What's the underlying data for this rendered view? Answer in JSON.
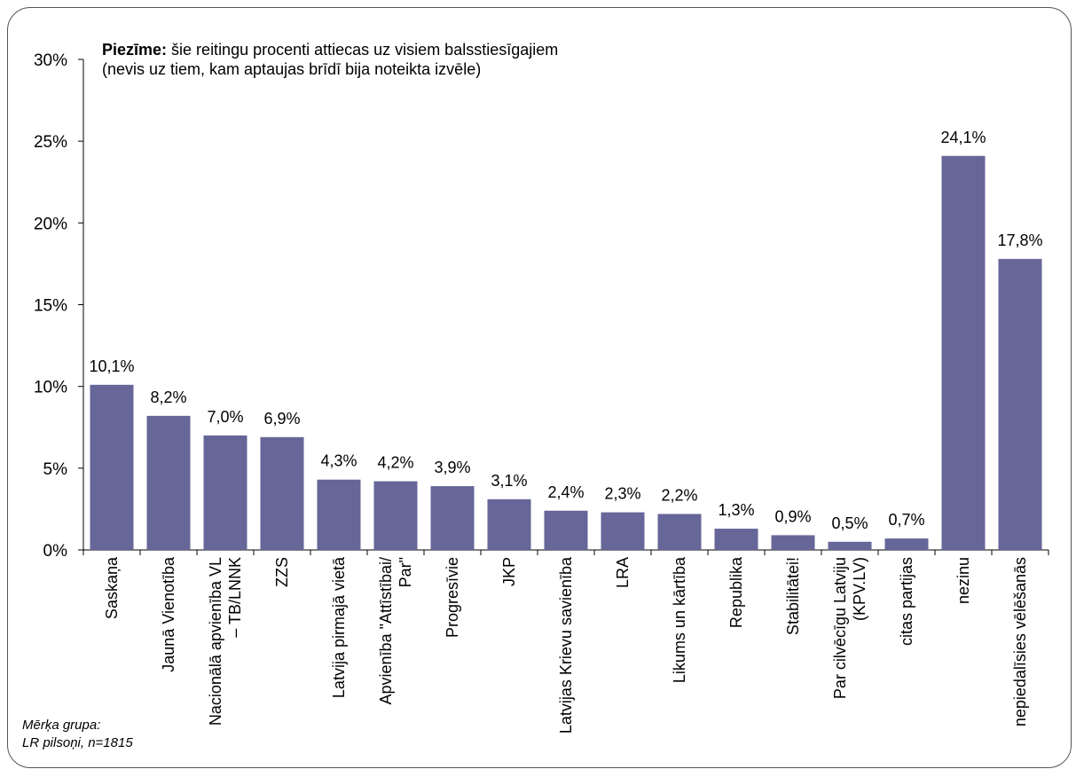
{
  "note": {
    "label": "Piezīme:",
    "text": "šie reitingu procenti attiecas uz visiem balsstiesīgajiem (nevis uz tiem, kam aptaujas brīdī bija noteikta izvēle)"
  },
  "footnote": {
    "line1": "Mērķa grupa:",
    "line2": "LR pilsoņi, n=1815"
  },
  "chart_data": {
    "type": "bar",
    "title": "",
    "xlabel": "",
    "ylabel": "",
    "ylim": [
      0,
      30
    ],
    "yticks": [
      0,
      5,
      10,
      15,
      20,
      25,
      30
    ],
    "ytick_labels": [
      "0%",
      "5%",
      "10%",
      "15%",
      "20%",
      "25%",
      "30%"
    ],
    "grid": false,
    "bar_color": "#666699",
    "categories": [
      "Saskaņa",
      "Jaunā Vienotība",
      "Nacionālā apvienība VL – TB/LNNK",
      "ZZS",
      "Latvija pirmajā vietā",
      "Apvienība \"Attīstībai/ Par\"",
      "Progresīvie",
      "JKP",
      "Latvijas Krievu savienība",
      "LRA",
      "Likums un kārtība",
      "Republika",
      "Stabilitātei!",
      "Par cilvēcīgu Latviju (KPV.LV)",
      "citas partijas",
      "nezinu",
      "nepiedalīsies vēlēšanās"
    ],
    "category_lines": [
      [
        "Saskaņa"
      ],
      [
        "Jaunā Vienotība"
      ],
      [
        "Nacionālā apvienība VL",
        "– TB/LNNK"
      ],
      [
        "ZZS"
      ],
      [
        "Latvija pirmajā vietā"
      ],
      [
        "Apvienība \"Attīstībai/",
        "Par\""
      ],
      [
        "Progresīvie"
      ],
      [
        "JKP"
      ],
      [
        "Latvijas Krievu savienība"
      ],
      [
        "LRA"
      ],
      [
        "Likums un kārtība"
      ],
      [
        "Republika"
      ],
      [
        "Stabilitātei!"
      ],
      [
        "Par cilvēcīgu Latviju",
        "(KPV.LV)"
      ],
      [
        "citas partijas"
      ],
      [
        "nezinu"
      ],
      [
        "nepiedalīsies vēlēšanās"
      ]
    ],
    "values": [
      10.1,
      8.2,
      7.0,
      6.9,
      4.3,
      4.2,
      3.9,
      3.1,
      2.4,
      2.3,
      2.2,
      1.3,
      0.9,
      0.5,
      0.7,
      24.1,
      17.8
    ],
    "value_labels": [
      "10,1%",
      "8,2%",
      "7,0%",
      "6,9%",
      "4,3%",
      "4,2%",
      "3,9%",
      "3,1%",
      "2,4%",
      "2,3%",
      "2,2%",
      "1,3%",
      "0,9%",
      "0,5%",
      "0,7%",
      "24,1%",
      "17,8%"
    ]
  }
}
